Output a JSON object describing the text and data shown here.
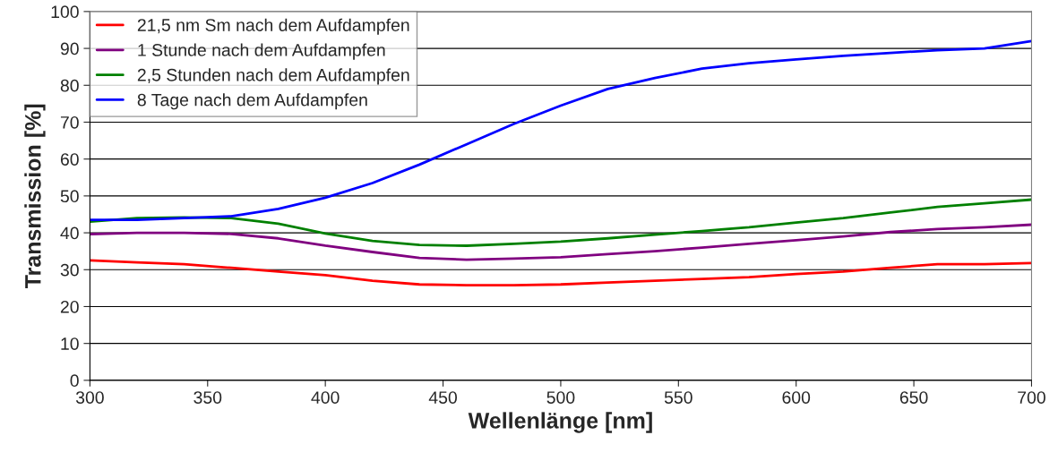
{
  "chart_data": {
    "type": "line",
    "xlabel": "Wellenlänge [nm]",
    "ylabel": "Transmission [%]",
    "x": [
      300,
      320,
      340,
      360,
      380,
      400,
      420,
      440,
      460,
      480,
      500,
      520,
      540,
      560,
      580,
      600,
      620,
      640,
      660,
      680,
      700
    ],
    "series": [
      {
        "name": "21,5 nm Sm nach dem Aufdampfen",
        "color": "#ff0000",
        "values": [
          32.5,
          32,
          31.5,
          30.5,
          29.5,
          28.5,
          27,
          26,
          25.8,
          25.8,
          26,
          26.5,
          27,
          27.5,
          28,
          28.8,
          29.5,
          30.5,
          31.5,
          31.5,
          31.8
        ]
      },
      {
        "name": "1 Stunde nach dem Aufdampfen",
        "color": "#800080",
        "values": [
          39.6,
          40,
          40,
          39.7,
          38.5,
          36.5,
          34.8,
          33.2,
          32.7,
          33,
          33.4,
          34.2,
          35,
          36,
          37,
          38,
          39,
          40.2,
          41,
          41.5,
          42.2
        ]
      },
      {
        "name": "2,5 Stunden nach dem Aufdampfen",
        "color": "#008000",
        "values": [
          43,
          44,
          44.2,
          44,
          42.5,
          39.8,
          37.8,
          36.7,
          36.5,
          37,
          37.6,
          38.5,
          39.5,
          40.5,
          41.5,
          42.8,
          44,
          45.5,
          47,
          48,
          49
        ]
      },
      {
        "name": "8 Tage nach dem Aufdampfen",
        "color": "#0000ff",
        "values": [
          43.5,
          43.5,
          44,
          44.5,
          46.5,
          49.5,
          53.5,
          58.5,
          64,
          69.5,
          74.5,
          79,
          82,
          84.5,
          86,
          87,
          88,
          88.8,
          89.5,
          90,
          92
        ]
      }
    ],
    "xlim": [
      300,
      700
    ],
    "xticks": [
      300,
      350,
      400,
      450,
      500,
      550,
      600,
      650,
      700
    ],
    "ylim": [
      0,
      100
    ],
    "yticks": [
      0,
      10,
      20,
      30,
      40,
      50,
      60,
      70,
      80,
      90,
      100
    ],
    "grid": "y",
    "legend": "top left",
    "line_style": "solid",
    "marker": "none"
  }
}
